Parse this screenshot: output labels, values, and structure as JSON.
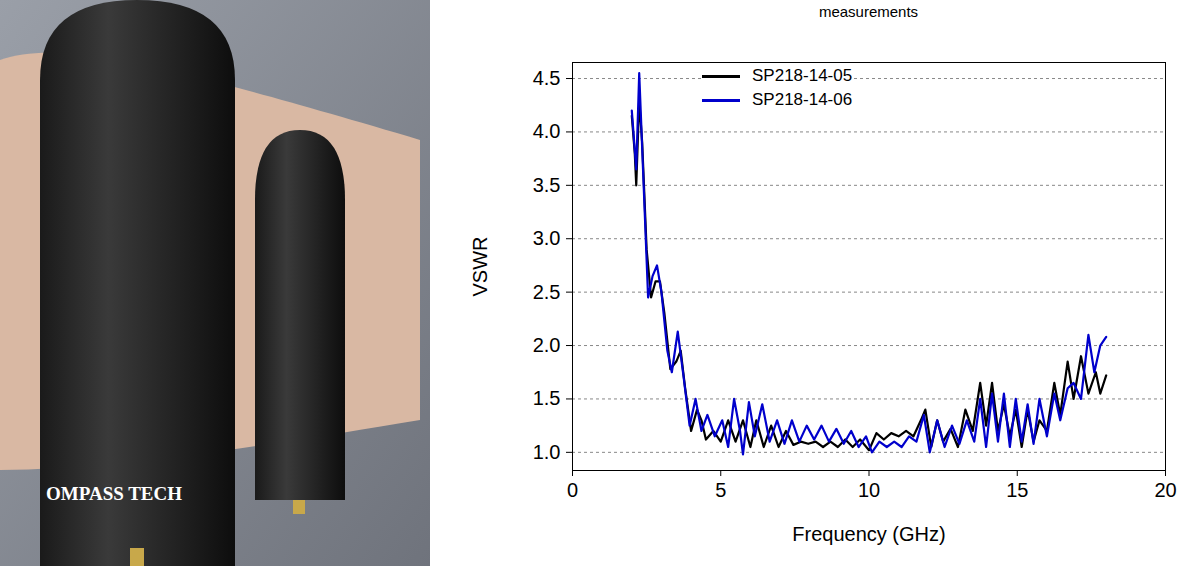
{
  "chart_data": {
    "type": "line",
    "title": "measurements",
    "x_label": "Frequency (GHz)",
    "y_label": "VSWR",
    "xlim": [
      0,
      20
    ],
    "xticks": [
      0,
      5,
      10,
      15,
      20
    ],
    "ylim": [
      0.83,
      4.65
    ],
    "yticks": [
      1,
      1.5,
      2,
      2.5,
      3,
      3.5,
      4,
      4.5
    ],
    "grid": true,
    "legend": "top",
    "series": [
      {
        "name": "SP218-14-05",
        "color": "#000000",
        "x": [
          2.0,
          2.1,
          2.15,
          2.25,
          2.35,
          2.5,
          2.65,
          2.8,
          2.95,
          3.1,
          3.3,
          3.5,
          3.65,
          3.8,
          4.0,
          4.2,
          4.35,
          4.5,
          4.75,
          5.0,
          5.25,
          5.5,
          5.75,
          6.0,
          6.2,
          6.45,
          6.7,
          6.95,
          7.2,
          7.45,
          7.7,
          7.95,
          8.2,
          8.45,
          8.7,
          8.95,
          9.2,
          9.45,
          9.7,
          10.0,
          10.25,
          10.5,
          10.75,
          11.0,
          11.25,
          11.5,
          11.75,
          11.9,
          12.1,
          12.3,
          12.5,
          12.75,
          13.0,
          13.25,
          13.5,
          13.75,
          13.95,
          14.15,
          14.35,
          14.55,
          14.75,
          14.95,
          15.15,
          15.35,
          15.55,
          15.75,
          16.0,
          16.25,
          16.45,
          16.7,
          16.9,
          17.15,
          17.4,
          17.65,
          17.8,
          18.0
        ],
        "values": [
          4.15,
          3.8,
          3.5,
          4.3,
          3.9,
          2.9,
          2.45,
          2.6,
          2.6,
          2.3,
          1.78,
          1.85,
          1.95,
          1.6,
          1.2,
          1.4,
          1.3,
          1.12,
          1.2,
          1.1,
          1.3,
          1.1,
          1.3,
          1.05,
          1.3,
          1.05,
          1.25,
          1.05,
          1.2,
          1.07,
          1.1,
          1.08,
          1.1,
          1.05,
          1.1,
          1.05,
          1.12,
          1.05,
          1.12,
          1.02,
          1.18,
          1.12,
          1.18,
          1.15,
          1.2,
          1.15,
          1.3,
          1.4,
          1.05,
          1.3,
          1.1,
          1.22,
          1.05,
          1.4,
          1.2,
          1.65,
          1.25,
          1.65,
          1.2,
          1.45,
          1.15,
          1.4,
          1.05,
          1.4,
          1.1,
          1.3,
          1.2,
          1.65,
          1.35,
          1.85,
          1.5,
          1.9,
          1.55,
          1.75,
          1.55,
          1.72
        ]
      },
      {
        "name": "SP218-14-06",
        "color": "#0000cc",
        "x": [
          2.0,
          2.15,
          2.25,
          2.4,
          2.55,
          2.7,
          2.85,
          3.0,
          3.2,
          3.35,
          3.55,
          3.75,
          3.95,
          4.15,
          4.35,
          4.55,
          4.8,
          5.05,
          5.25,
          5.45,
          5.65,
          5.75,
          5.95,
          6.15,
          6.4,
          6.65,
          6.9,
          7.15,
          7.4,
          7.65,
          7.9,
          8.15,
          8.4,
          8.65,
          8.9,
          9.15,
          9.4,
          9.65,
          9.9,
          10.1,
          10.35,
          10.6,
          10.85,
          11.1,
          11.35,
          11.6,
          11.85,
          12.05,
          12.3,
          12.55,
          12.8,
          13.05,
          13.3,
          13.55,
          13.75,
          13.95,
          14.15,
          14.35,
          14.55,
          14.75,
          14.95,
          15.15,
          15.35,
          15.55,
          15.75,
          16.0,
          16.25,
          16.45,
          16.7,
          16.9,
          17.15,
          17.4,
          17.6,
          17.8,
          18.0
        ],
        "values": [
          4.2,
          3.65,
          4.55,
          3.5,
          2.45,
          2.65,
          2.75,
          2.5,
          1.95,
          1.75,
          2.13,
          1.7,
          1.25,
          1.5,
          1.2,
          1.35,
          1.15,
          1.3,
          1.05,
          1.5,
          1.2,
          0.98,
          1.47,
          1.15,
          1.45,
          1.1,
          1.3,
          1.08,
          1.3,
          1.1,
          1.25,
          1.12,
          1.25,
          1.1,
          1.22,
          1.08,
          1.2,
          1.05,
          1.15,
          1.0,
          1.1,
          1.05,
          1.1,
          1.05,
          1.15,
          1.1,
          1.35,
          1.0,
          1.3,
          1.05,
          1.25,
          1.08,
          1.3,
          1.1,
          1.5,
          1.05,
          1.55,
          1.1,
          1.55,
          1.05,
          1.5,
          1.1,
          1.45,
          1.08,
          1.5,
          1.15,
          1.55,
          1.3,
          1.6,
          1.65,
          1.5,
          2.1,
          1.75,
          2.0,
          2.08
        ]
      }
    ]
  },
  "photo": {
    "printed_text": "OMPASS TECH"
  }
}
